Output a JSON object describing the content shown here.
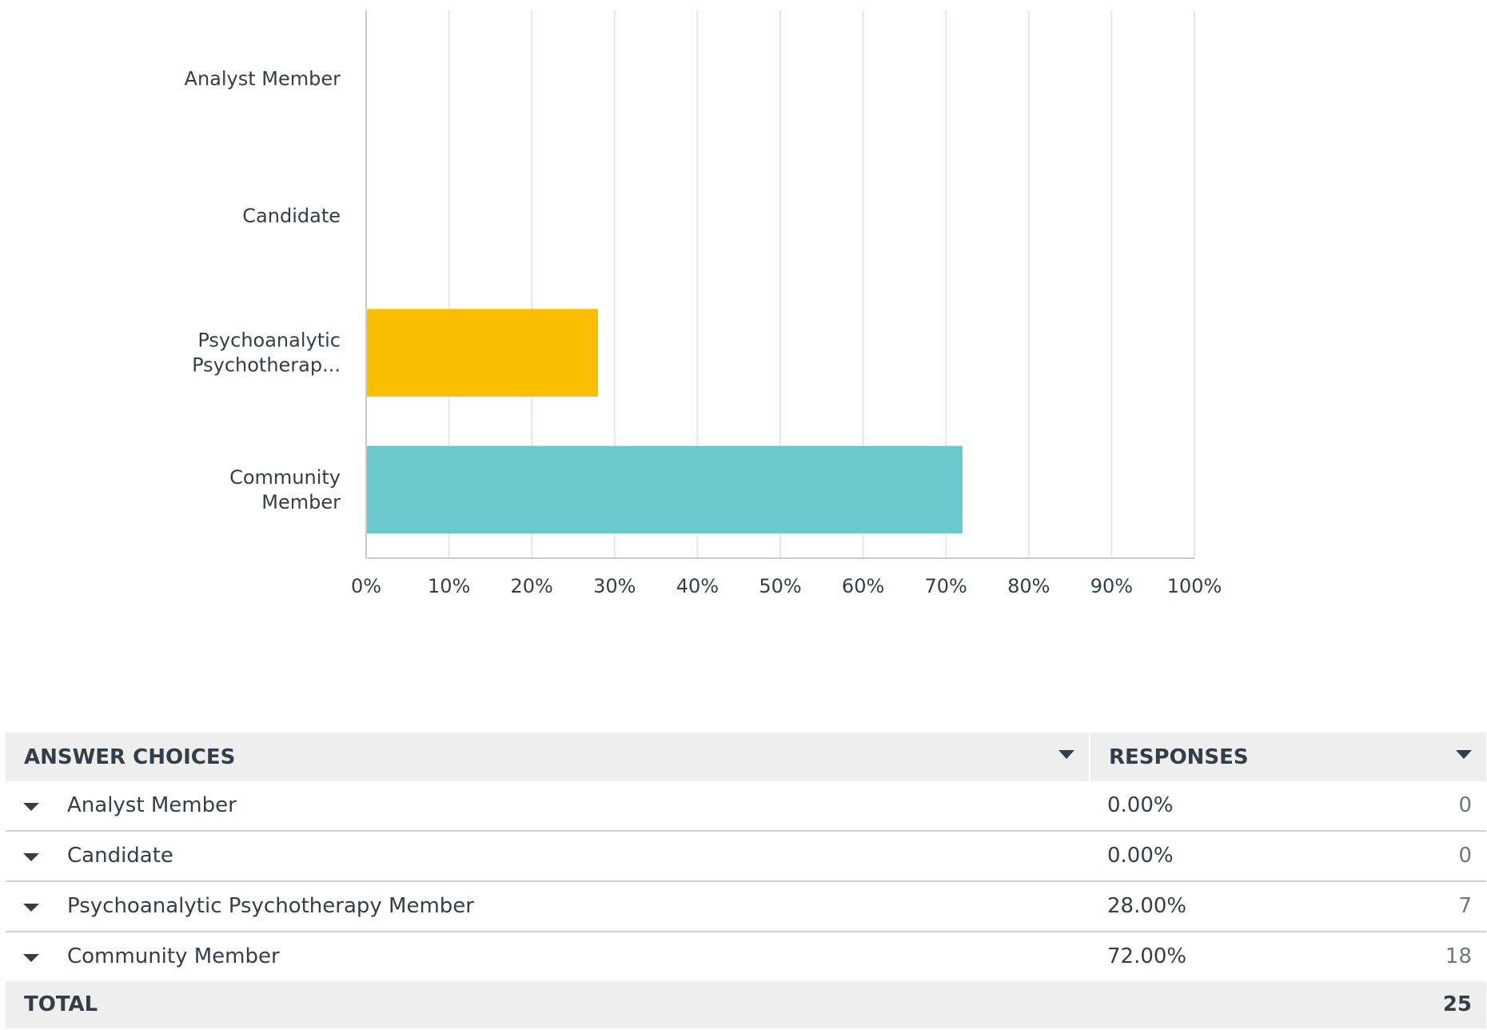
{
  "chart_data": {
    "type": "bar",
    "orientation": "horizontal",
    "categories": [
      "Analyst Member",
      "Candidate",
      "Psychoanalytic Psychotherapy Member",
      "Community Member"
    ],
    "category_labels": [
      [
        "Analyst Member"
      ],
      [
        "Candidate"
      ],
      [
        "Psychoanalytic",
        "Psychotherap..."
      ],
      [
        "Community",
        "Member"
      ]
    ],
    "values": [
      0,
      0,
      28,
      72
    ],
    "bar_colors": [
      "#00bf6f",
      "#507cb6",
      "#f9be00",
      "#6bc8cd"
    ],
    "xlim": [
      0,
      100
    ],
    "xticks": [
      0,
      10,
      20,
      30,
      40,
      50,
      60,
      70,
      80,
      90,
      100
    ],
    "tick_suffix": "%",
    "grid": true,
    "grid_color": "#e6e7e8",
    "axis_color": "#c9cbcc"
  },
  "table": {
    "headers": {
      "choices": "ANSWER CHOICES",
      "responses": "RESPONSES"
    },
    "rows": [
      {
        "choice": "Analyst Member",
        "percent": "0.00%",
        "count": "0"
      },
      {
        "choice": "Candidate",
        "percent": "0.00%",
        "count": "0"
      },
      {
        "choice": "Psychoanalytic Psychotherapy Member",
        "percent": "28.00%",
        "count": "7"
      },
      {
        "choice": "Community Member",
        "percent": "72.00%",
        "count": "18"
      }
    ],
    "total": {
      "label": "TOTAL",
      "value": "25"
    }
  }
}
